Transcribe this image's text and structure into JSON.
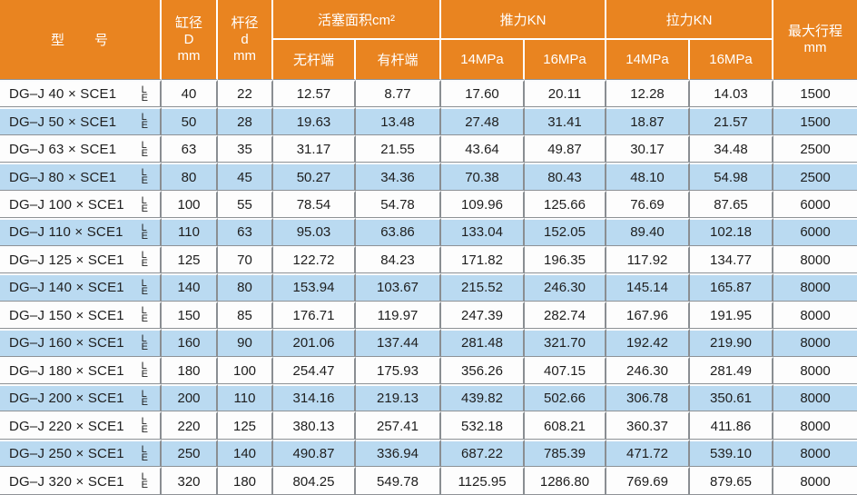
{
  "colors": {
    "header_orange": "#E98420",
    "row_blue": "#BADAF1",
    "row_white": "#FDFDFD",
    "grid_gray_vertical": "#8A8E92",
    "grid_gray_horizontal": "#8E9296",
    "header_text": "#FFFFFF",
    "body_text": "#1E1E1E"
  },
  "table": {
    "header": {
      "model": "型　　号",
      "bore_lines": [
        "缸径",
        "D",
        "mm"
      ],
      "rod_lines": [
        "杆径",
        "d",
        "mm"
      ],
      "piston_area": "活塞面积cm²",
      "piston_sub": [
        "无杆端",
        "有杆端"
      ],
      "thrust": "推力KN",
      "pull": "拉力KN",
      "pressure_sub": [
        "14MPa",
        "16MPa",
        "14MPa",
        "16MPa"
      ],
      "max_stroke_lines": [
        "最大行程",
        "mm"
      ]
    },
    "suffix_stack": [
      "L",
      "E"
    ],
    "rows": [
      {
        "model": "DG–J 40 × SCE1",
        "values": [
          "40",
          "22",
          "12.57",
          "8.77",
          "17.60",
          "20.11",
          "12.28",
          "14.03",
          "1500"
        ]
      },
      {
        "model": "DG–J 50 × SCE1",
        "values": [
          "50",
          "28",
          "19.63",
          "13.48",
          "27.48",
          "31.41",
          "18.87",
          "21.57",
          "1500"
        ]
      },
      {
        "model": "DG–J 63 × SCE1",
        "values": [
          "63",
          "35",
          "31.17",
          "21.55",
          "43.64",
          "49.87",
          "30.17",
          "34.48",
          "2500"
        ]
      },
      {
        "model": "DG–J 80 × SCE1",
        "values": [
          "80",
          "45",
          "50.27",
          "34.36",
          "70.38",
          "80.43",
          "48.10",
          "54.98",
          "2500"
        ]
      },
      {
        "model": "DG–J 100 × SCE1",
        "values": [
          "100",
          "55",
          "78.54",
          "54.78",
          "109.96",
          "125.66",
          "76.69",
          "87.65",
          "6000"
        ]
      },
      {
        "model": "DG–J 110 × SCE1",
        "values": [
          "110",
          "63",
          "95.03",
          "63.86",
          "133.04",
          "152.05",
          "89.40",
          "102.18",
          "6000"
        ]
      },
      {
        "model": "DG–J 125 × SCE1",
        "values": [
          "125",
          "70",
          "122.72",
          "84.23",
          "171.82",
          "196.35",
          "117.92",
          "134.77",
          "8000"
        ]
      },
      {
        "model": "DG–J 140 × SCE1",
        "values": [
          "140",
          "80",
          "153.94",
          "103.67",
          "215.52",
          "246.30",
          "145.14",
          "165.87",
          "8000"
        ]
      },
      {
        "model": "DG–J 150 × SCE1",
        "values": [
          "150",
          "85",
          "176.71",
          "119.97",
          "247.39",
          "282.74",
          "167.96",
          "191.95",
          "8000"
        ]
      },
      {
        "model": "DG–J 160 × SCE1",
        "values": [
          "160",
          "90",
          "201.06",
          "137.44",
          "281.48",
          "321.70",
          "192.42",
          "219.90",
          "8000"
        ]
      },
      {
        "model": "DG–J 180 × SCE1",
        "values": [
          "180",
          "100",
          "254.47",
          "175.93",
          "356.26",
          "407.15",
          "246.30",
          "281.49",
          "8000"
        ]
      },
      {
        "model": "DG–J 200 × SCE1",
        "values": [
          "200",
          "110",
          "314.16",
          "219.13",
          "439.82",
          "502.66",
          "306.78",
          "350.61",
          "8000"
        ]
      },
      {
        "model": "DG–J 220 × SCE1",
        "values": [
          "220",
          "125",
          "380.13",
          "257.41",
          "532.18",
          "608.21",
          "360.37",
          "411.86",
          "8000"
        ]
      },
      {
        "model": "DG–J 250 × SCE1",
        "values": [
          "250",
          "140",
          "490.87",
          "336.94",
          "687.22",
          "785.39",
          "471.72",
          "539.10",
          "8000"
        ]
      },
      {
        "model": "DG–J 320 × SCE1",
        "values": [
          "320",
          "180",
          "804.25",
          "549.78",
          "1125.95",
          "1286.80",
          "769.69",
          "879.65",
          "8000"
        ]
      }
    ]
  }
}
